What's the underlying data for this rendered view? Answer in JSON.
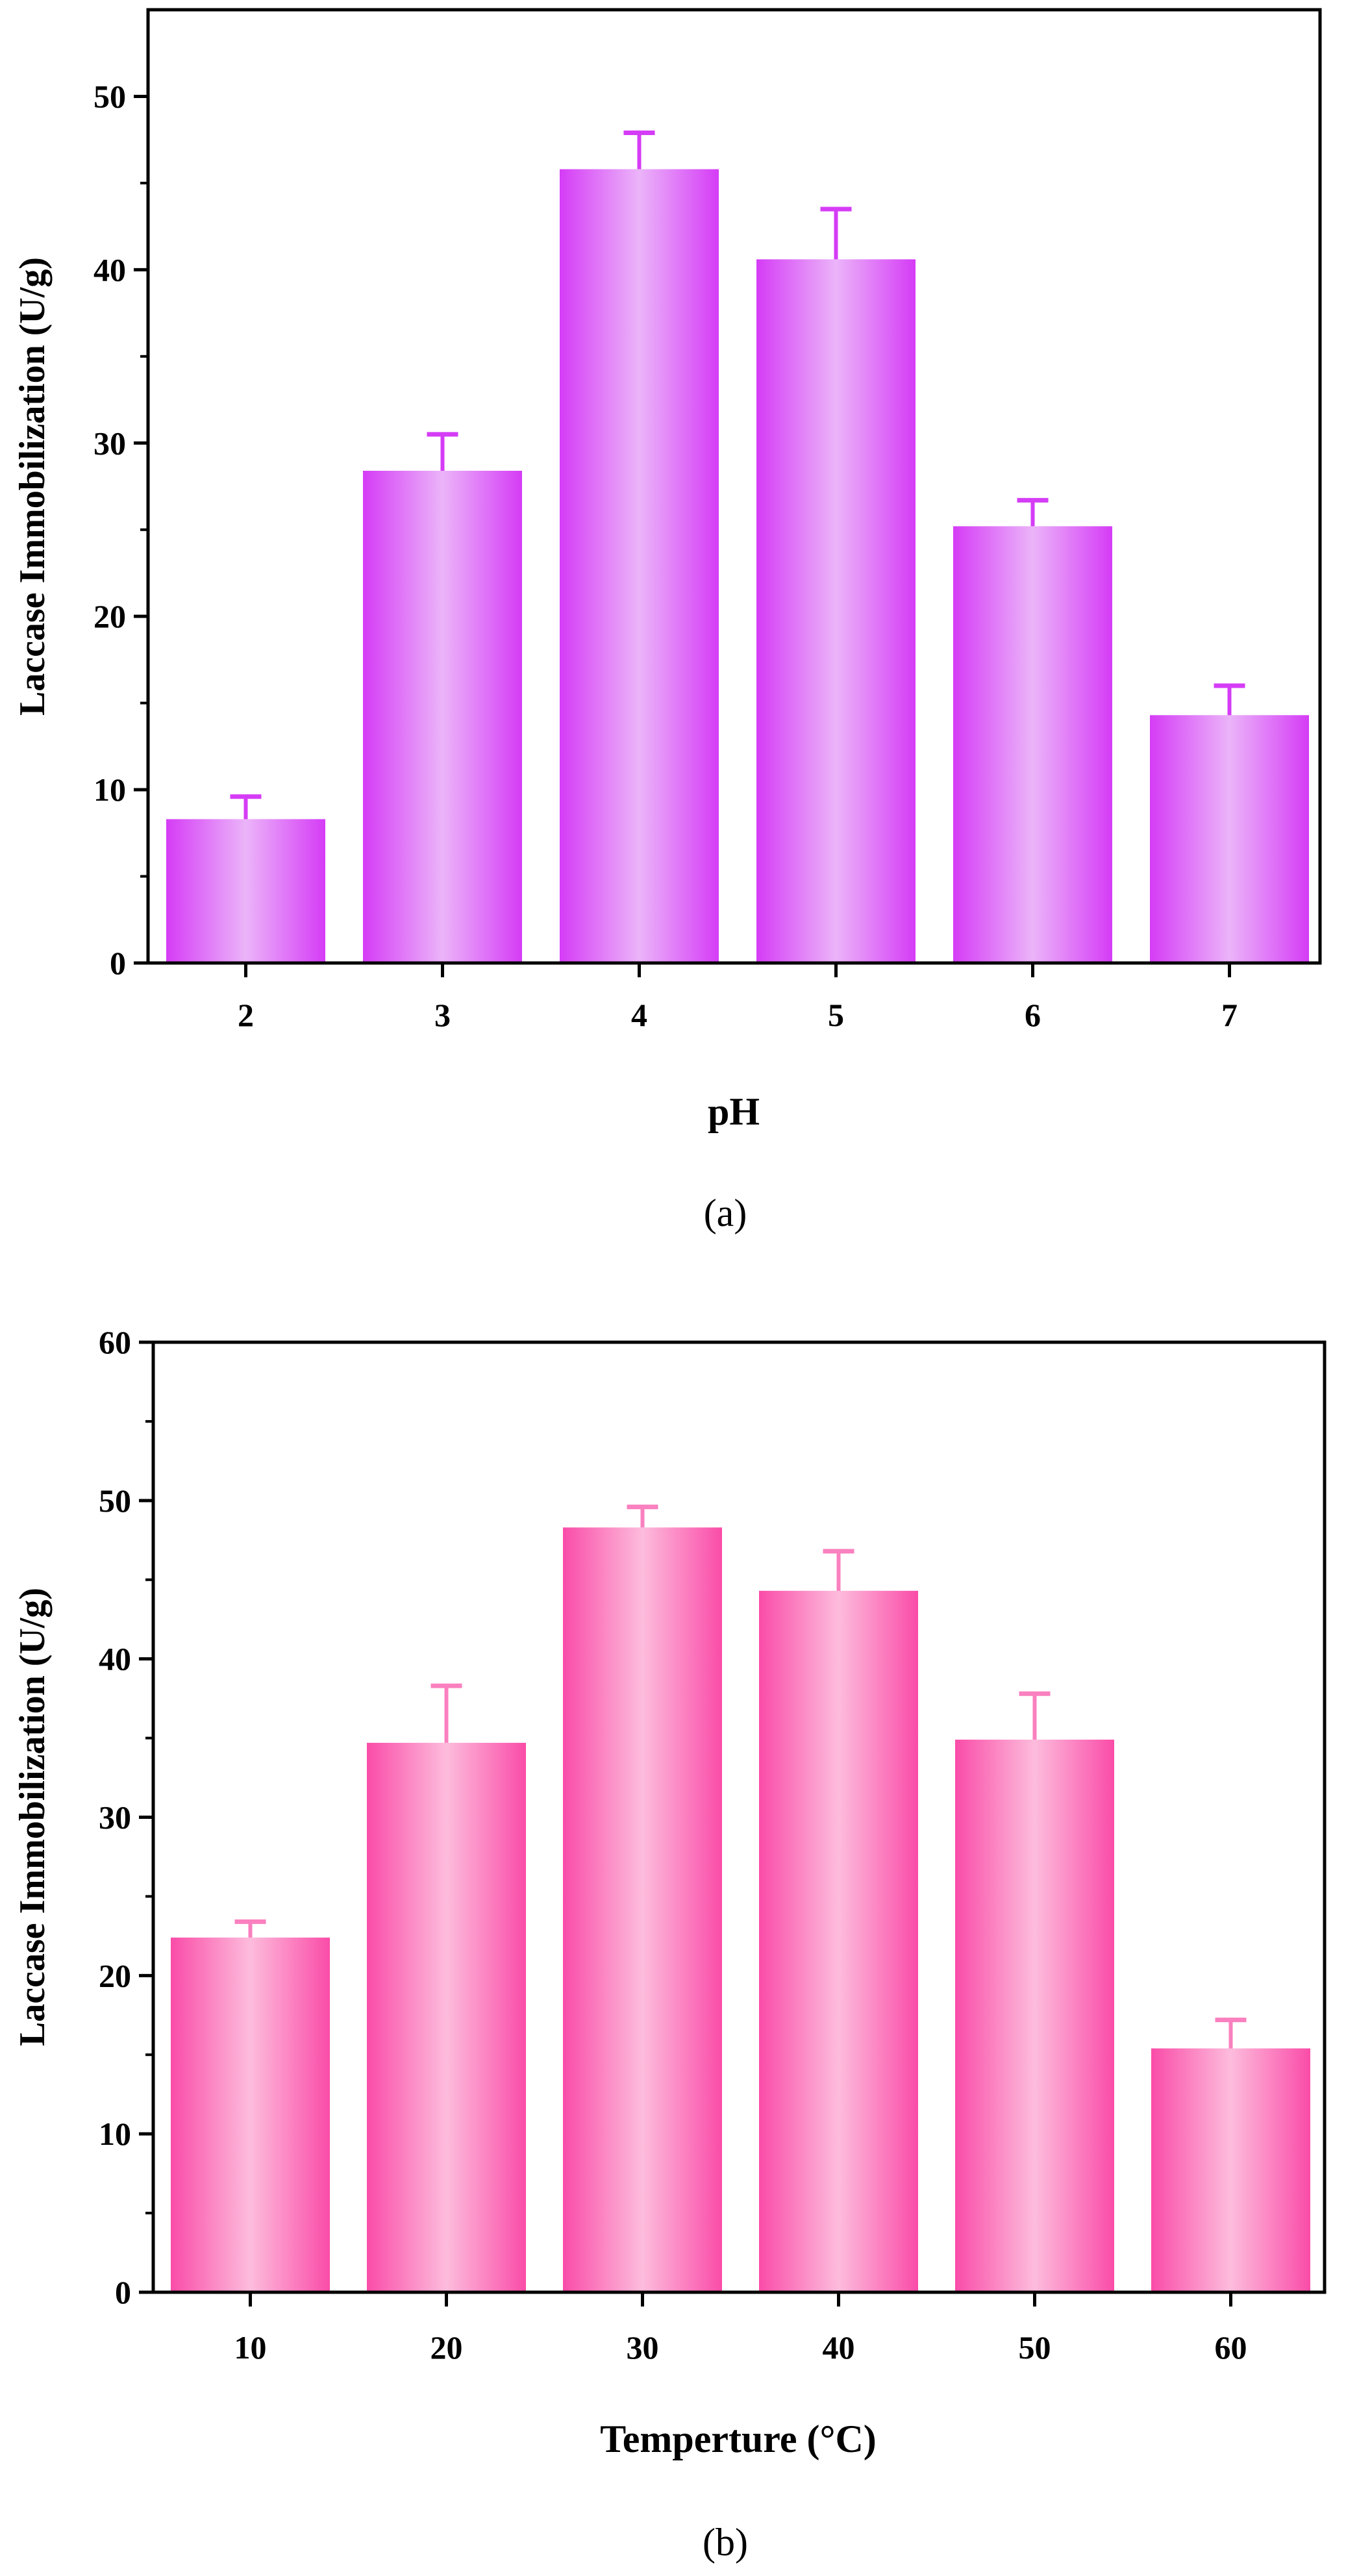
{
  "chart_data": [
    {
      "type": "bar",
      "panel_label": "(a)",
      "xlabel": "pH",
      "ylabel": "Laccase Immobilization (U/g)",
      "categories": [
        "2",
        "3",
        "4",
        "5",
        "6",
        "7"
      ],
      "values": [
        8.3,
        28.4,
        45.8,
        40.6,
        25.2,
        14.3
      ],
      "errors": [
        1.3,
        2.1,
        2.1,
        2.9,
        1.5,
        1.7
      ],
      "ylim": [
        0,
        55
      ],
      "yticks": [
        0,
        10,
        20,
        30,
        40,
        50
      ],
      "ytick_labels": [
        "0",
        "10",
        "20",
        "30",
        "40",
        "50"
      ],
      "minor_ytick_step": 5,
      "bar_color_edge": "#D53CF6",
      "bar_color_center": "#EBB4F9",
      "error_color": "#D53CF6"
    },
    {
      "type": "bar",
      "panel_label": "(b)",
      "xlabel": "Temperture (°C)",
      "ylabel": "Laccase Immobilization (U/g)",
      "categories": [
        "10",
        "20",
        "30",
        "40",
        "50",
        "60"
      ],
      "values": [
        22.4,
        34.7,
        48.3,
        44.3,
        34.9,
        15.4
      ],
      "errors": [
        1.0,
        3.6,
        1.3,
        2.5,
        2.9,
        1.8
      ],
      "ylim": [
        0,
        60
      ],
      "yticks": [
        0,
        10,
        20,
        30,
        40,
        50,
        60
      ],
      "ytick_labels": [
        "0",
        "10",
        "20",
        "30",
        "40",
        "50",
        "60"
      ],
      "minor_ytick_step": 5,
      "bar_color_edge": "#FA4CA8",
      "bar_color_center": "#FDBCDC",
      "error_color": "#FA80BF"
    }
  ]
}
